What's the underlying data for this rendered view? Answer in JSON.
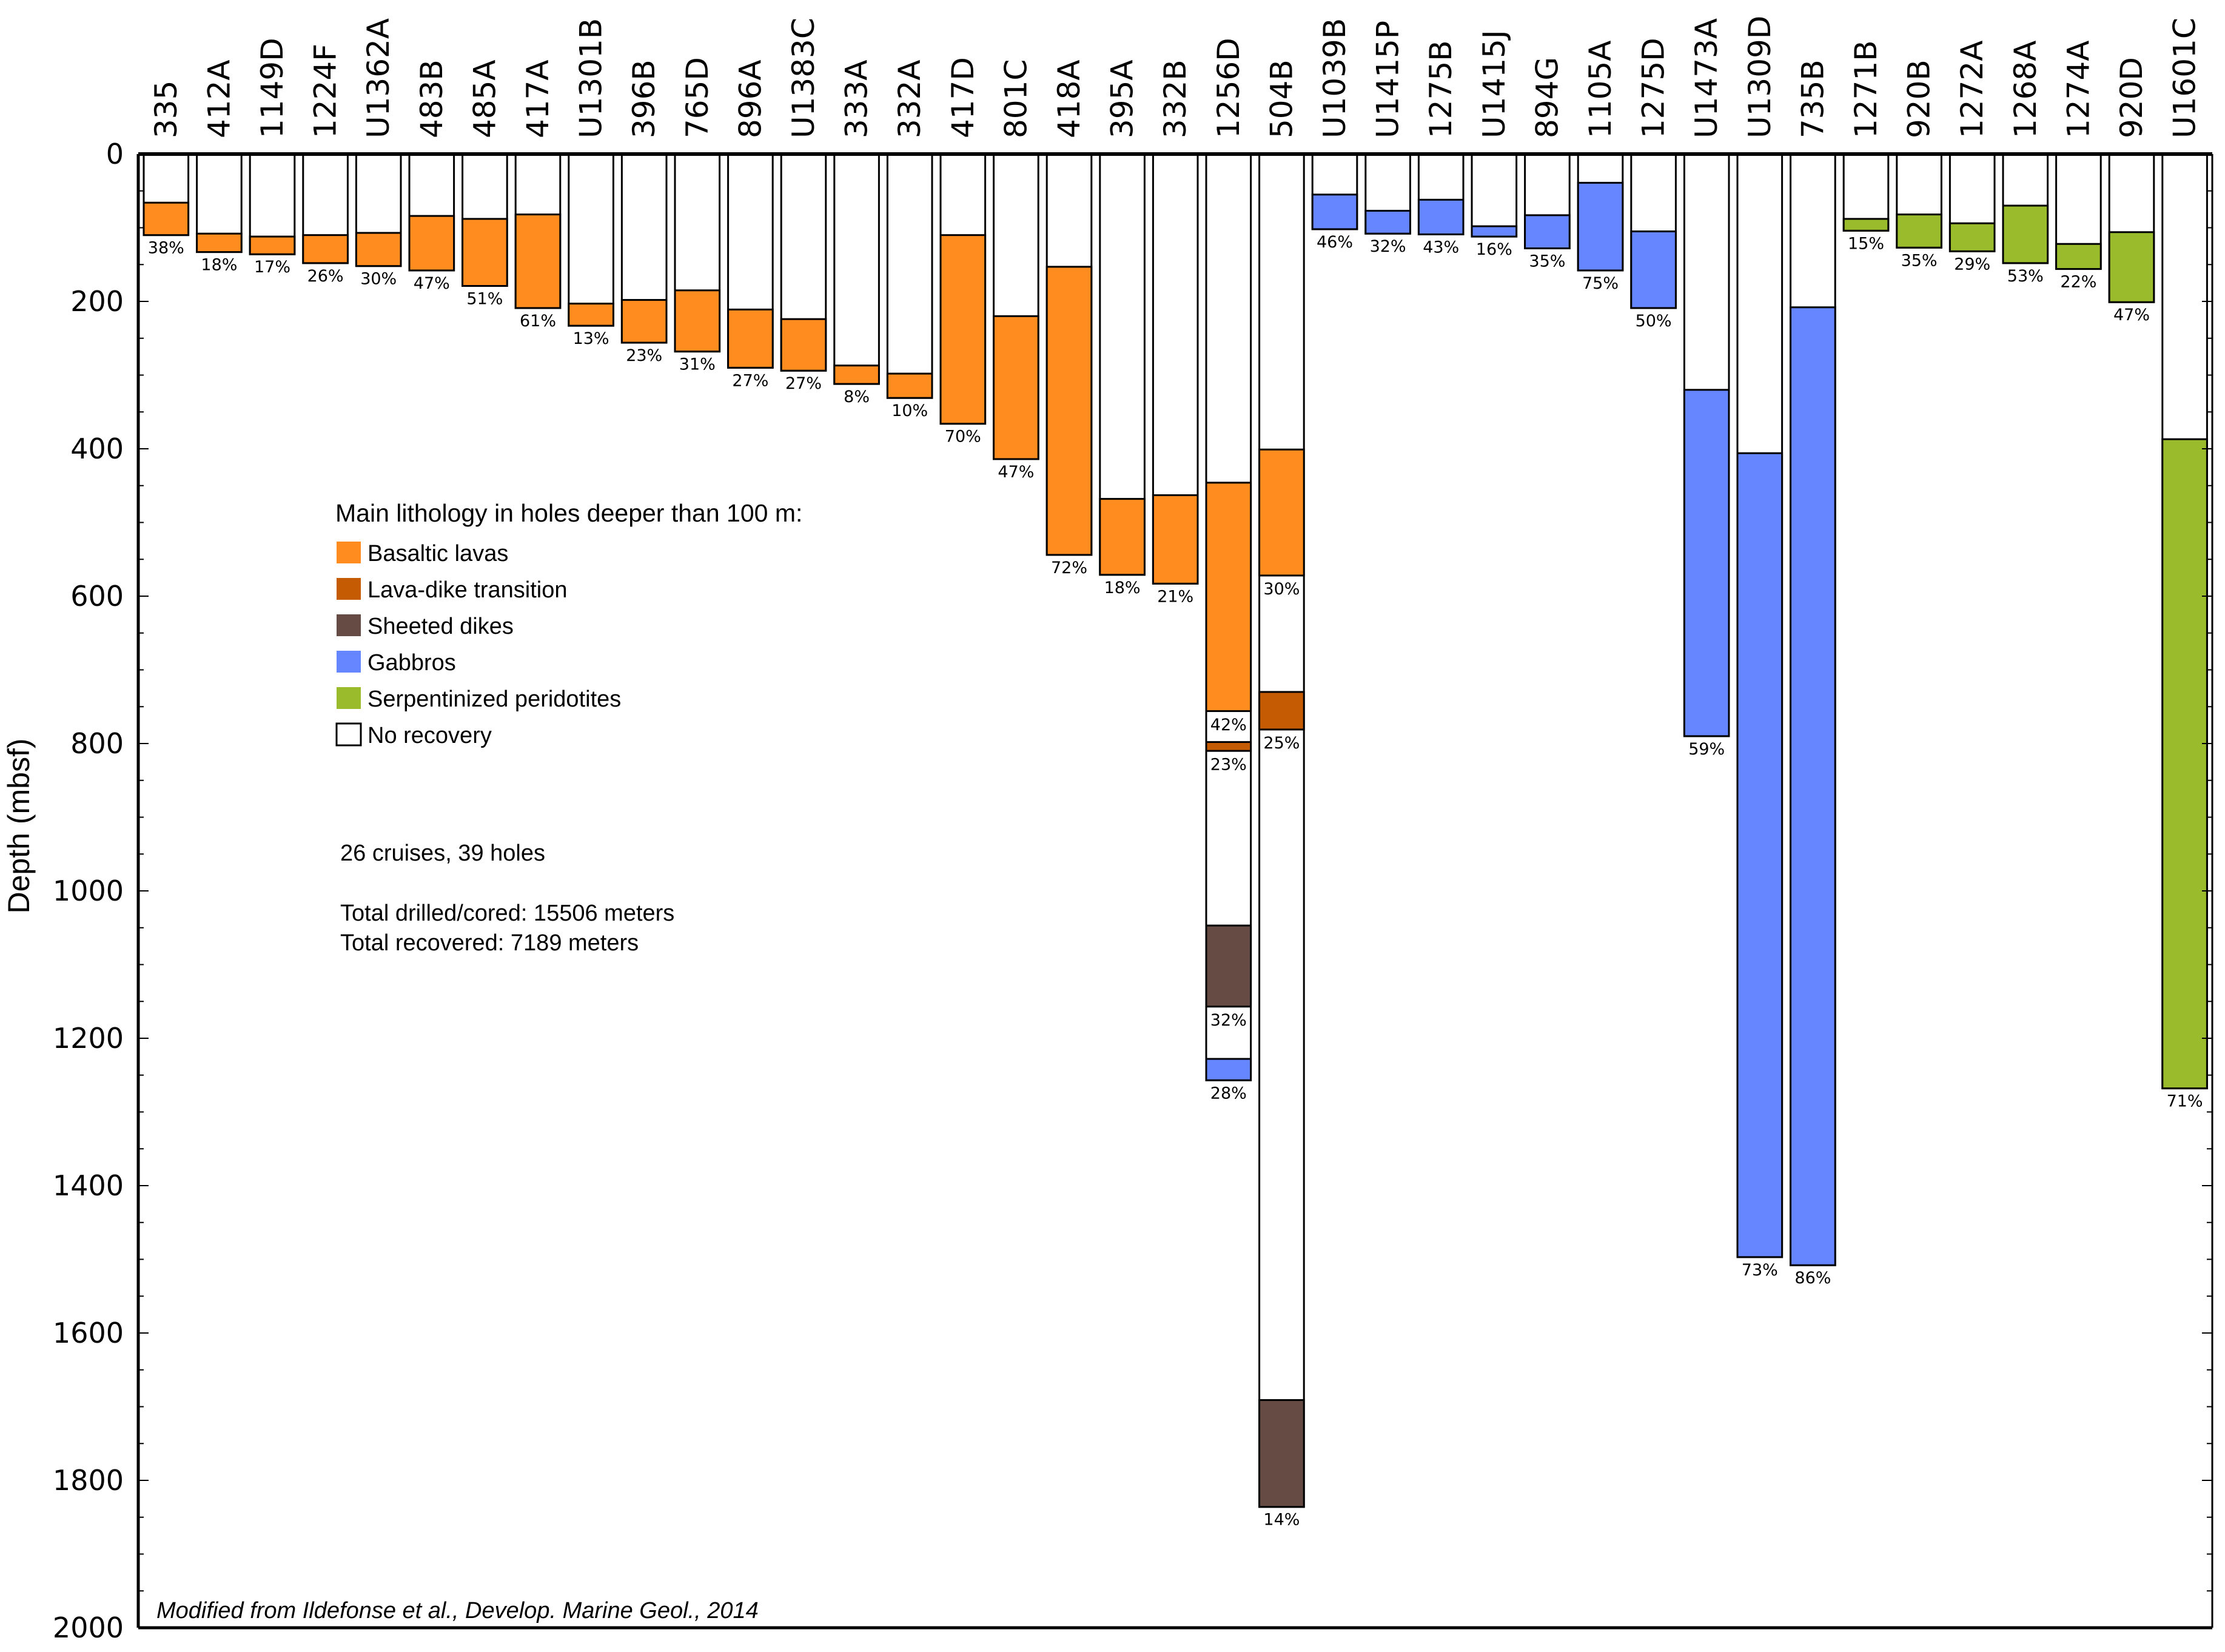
{
  "chart_data": {
    "type": "bar",
    "subtype": "stacked-depth-column",
    "title": "",
    "xlabel": "",
    "ylabel": "Depth (mbsf)",
    "ylim": [
      0,
      2000
    ],
    "y_inverted": true,
    "yticks": [
      0,
      200,
      400,
      600,
      800,
      1000,
      1200,
      1400,
      1600,
      1800,
      2000
    ],
    "y_minor_step": 50,
    "grid": false,
    "legend_position": "upper-left-inside",
    "legend_title": "Main lithology in holes deeper than 100 m:",
    "lithologies": [
      {
        "key": "basalt",
        "label": "Basaltic lavas",
        "color": "#FF8C1E"
      },
      {
        "key": "transition",
        "label": "Lava-dike transition",
        "color": "#C55C04"
      },
      {
        "key": "dikes",
        "label": "Sheeted dikes",
        "color": "#654B44"
      },
      {
        "key": "gabbro",
        "label": "Gabbros",
        "color": "#6586FF"
      },
      {
        "key": "peridotite",
        "label": "Serpentinized peridotites",
        "color": "#9ABB2C"
      },
      {
        "key": "none",
        "label": "No recovery",
        "color": "#FFFFFF"
      }
    ],
    "notes": [
      "26 cruises, 39 holes",
      "Total drilled/cored: 15506 meters",
      "Total recovered: 7189 meters"
    ],
    "credit": "Modified from Ildefonse et al., Develop. Marine Geol., 2014",
    "holes": [
      {
        "name": "335",
        "total": 110,
        "segments": [
          {
            "top": 66,
            "bottom": 110,
            "lith": "basalt"
          }
        ],
        "labels": [
          {
            "text": "38%",
            "depth": 110
          }
        ]
      },
      {
        "name": "412A",
        "total": 133,
        "segments": [
          {
            "top": 108,
            "bottom": 133,
            "lith": "basalt"
          }
        ],
        "labels": [
          {
            "text": "18%",
            "depth": 133
          }
        ]
      },
      {
        "name": "1149D",
        "total": 136,
        "segments": [
          {
            "top": 112,
            "bottom": 136,
            "lith": "basalt"
          }
        ],
        "labels": [
          {
            "text": "17%",
            "depth": 136
          }
        ]
      },
      {
        "name": "1224F",
        "total": 148,
        "segments": [
          {
            "top": 110,
            "bottom": 148,
            "lith": "basalt"
          }
        ],
        "labels": [
          {
            "text": "26%",
            "depth": 148
          }
        ]
      },
      {
        "name": "U1362A",
        "total": 152,
        "segments": [
          {
            "top": 107,
            "bottom": 152,
            "lith": "basalt"
          }
        ],
        "labels": [
          {
            "text": "30%",
            "depth": 152
          }
        ]
      },
      {
        "name": "483B",
        "total": 158,
        "segments": [
          {
            "top": 84,
            "bottom": 158,
            "lith": "basalt"
          }
        ],
        "labels": [
          {
            "text": "47%",
            "depth": 158
          }
        ]
      },
      {
        "name": "485A",
        "total": 179,
        "segments": [
          {
            "top": 88,
            "bottom": 179,
            "lith": "basalt"
          }
        ],
        "labels": [
          {
            "text": "51%",
            "depth": 179
          }
        ]
      },
      {
        "name": "417A",
        "total": 209,
        "segments": [
          {
            "top": 82,
            "bottom": 209,
            "lith": "basalt"
          }
        ],
        "labels": [
          {
            "text": "61%",
            "depth": 209
          }
        ]
      },
      {
        "name": "U1301B",
        "total": 233,
        "segments": [
          {
            "top": 203,
            "bottom": 233,
            "lith": "basalt"
          }
        ],
        "labels": [
          {
            "text": "13%",
            "depth": 233
          }
        ]
      },
      {
        "name": "396B",
        "total": 256,
        "segments": [
          {
            "top": 198,
            "bottom": 256,
            "lith": "basalt"
          }
        ],
        "labels": [
          {
            "text": "23%",
            "depth": 256
          }
        ]
      },
      {
        "name": "765D",
        "total": 268,
        "segments": [
          {
            "top": 185,
            "bottom": 268,
            "lith": "basalt"
          }
        ],
        "labels": [
          {
            "text": "31%",
            "depth": 268
          }
        ]
      },
      {
        "name": "896A",
        "total": 290,
        "segments": [
          {
            "top": 211,
            "bottom": 290,
            "lith": "basalt"
          }
        ],
        "labels": [
          {
            "text": "27%",
            "depth": 290
          }
        ]
      },
      {
        "name": "U1383C",
        "total": 294,
        "segments": [
          {
            "top": 224,
            "bottom": 294,
            "lith": "basalt"
          }
        ],
        "labels": [
          {
            "text": "27%",
            "depth": 294
          }
        ]
      },
      {
        "name": "333A",
        "total": 312,
        "segments": [
          {
            "top": 287,
            "bottom": 312,
            "lith": "basalt"
          }
        ],
        "labels": [
          {
            "text": "8%",
            "depth": 312
          }
        ]
      },
      {
        "name": "332A",
        "total": 331,
        "segments": [
          {
            "top": 298,
            "bottom": 331,
            "lith": "basalt"
          }
        ],
        "labels": [
          {
            "text": "10%",
            "depth": 331
          }
        ]
      },
      {
        "name": "417D",
        "total": 366,
        "segments": [
          {
            "top": 110,
            "bottom": 366,
            "lith": "basalt"
          }
        ],
        "labels": [
          {
            "text": "70%",
            "depth": 366
          }
        ]
      },
      {
        "name": "801C",
        "total": 414,
        "segments": [
          {
            "top": 220,
            "bottom": 414,
            "lith": "basalt"
          }
        ],
        "labels": [
          {
            "text": "47%",
            "depth": 414
          }
        ]
      },
      {
        "name": "418A",
        "total": 544,
        "segments": [
          {
            "top": 153,
            "bottom": 544,
            "lith": "basalt"
          }
        ],
        "labels": [
          {
            "text": "72%",
            "depth": 544
          }
        ]
      },
      {
        "name": "395A",
        "total": 571,
        "segments": [
          {
            "top": 468,
            "bottom": 571,
            "lith": "basalt"
          }
        ],
        "labels": [
          {
            "text": "18%",
            "depth": 571
          }
        ]
      },
      {
        "name": "332B",
        "total": 583,
        "segments": [
          {
            "top": 463,
            "bottom": 583,
            "lith": "basalt"
          }
        ],
        "labels": [
          {
            "text": "21%",
            "depth": 583
          }
        ]
      },
      {
        "name": "1256D",
        "total": 1257,
        "segments": [
          {
            "top": 446,
            "bottom": 756,
            "lith": "basalt"
          },
          {
            "top": 798,
            "bottom": 810,
            "lith": "transition"
          },
          {
            "top": 1047,
            "bottom": 1157,
            "lith": "dikes"
          },
          {
            "top": 1228,
            "bottom": 1257,
            "lith": "gabbro"
          }
        ],
        "labels": [
          {
            "text": "42%",
            "depth": 757
          },
          {
            "text": "23%",
            "depth": 811
          },
          {
            "text": "32%",
            "depth": 1158
          },
          {
            "text": "28%",
            "depth": 1257
          }
        ]
      },
      {
        "name": "504B",
        "total": 1836,
        "segments": [
          {
            "top": 401,
            "bottom": 572,
            "lith": "basalt"
          },
          {
            "top": 730,
            "bottom": 781,
            "lith": "transition"
          },
          {
            "top": 1691,
            "bottom": 1836,
            "lith": "dikes"
          }
        ],
        "labels": [
          {
            "text": "30%",
            "depth": 573
          },
          {
            "text": "25%",
            "depth": 782
          },
          {
            "text": "14%",
            "depth": 1836
          }
        ]
      },
      {
        "name": "U1039B",
        "total": 102,
        "segments": [
          {
            "top": 55,
            "bottom": 102,
            "lith": "gabbro"
          }
        ],
        "labels": [
          {
            "text": "46%",
            "depth": 102
          }
        ]
      },
      {
        "name": "U1415P",
        "total": 108,
        "segments": [
          {
            "top": 77,
            "bottom": 108,
            "lith": "gabbro"
          }
        ],
        "labels": [
          {
            "text": "32%",
            "depth": 108
          }
        ]
      },
      {
        "name": "1275B",
        "total": 109,
        "segments": [
          {
            "top": 62,
            "bottom": 109,
            "lith": "gabbro"
          }
        ],
        "labels": [
          {
            "text": "43%",
            "depth": 109
          }
        ]
      },
      {
        "name": "U1415J",
        "total": 112,
        "segments": [
          {
            "top": 98,
            "bottom": 112,
            "lith": "gabbro"
          }
        ],
        "labels": [
          {
            "text": "16%",
            "depth": 112
          }
        ]
      },
      {
        "name": "894G",
        "total": 128,
        "segments": [
          {
            "top": 83,
            "bottom": 128,
            "lith": "gabbro"
          }
        ],
        "labels": [
          {
            "text": "35%",
            "depth": 128
          }
        ]
      },
      {
        "name": "1105A",
        "total": 158,
        "segments": [
          {
            "top": 39,
            "bottom": 158,
            "lith": "gabbro"
          }
        ],
        "labels": [
          {
            "text": "75%",
            "depth": 158
          }
        ]
      },
      {
        "name": "1275D",
        "total": 209,
        "segments": [
          {
            "top": 105,
            "bottom": 209,
            "lith": "gabbro"
          }
        ],
        "labels": [
          {
            "text": "50%",
            "depth": 209
          }
        ]
      },
      {
        "name": "U1473A",
        "total": 790,
        "segments": [
          {
            "top": 320,
            "bottom": 790,
            "lith": "gabbro"
          }
        ],
        "labels": [
          {
            "text": "59%",
            "depth": 790
          }
        ]
      },
      {
        "name": "U1309D",
        "total": 1497,
        "segments": [
          {
            "top": 406,
            "bottom": 1497,
            "lith": "gabbro"
          }
        ],
        "labels": [
          {
            "text": "73%",
            "depth": 1497
          }
        ]
      },
      {
        "name": "735B",
        "total": 1508,
        "segments": [
          {
            "top": 208,
            "bottom": 1508,
            "lith": "gabbro"
          }
        ],
        "labels": [
          {
            "text": "86%",
            "depth": 1508
          }
        ]
      },
      {
        "name": "1271B",
        "total": 104,
        "segments": [
          {
            "top": 88,
            "bottom": 104,
            "lith": "peridotite"
          }
        ],
        "labels": [
          {
            "text": "15%",
            "depth": 104
          }
        ]
      },
      {
        "name": "920B",
        "total": 127,
        "segments": [
          {
            "top": 82,
            "bottom": 127,
            "lith": "peridotite"
          }
        ],
        "labels": [
          {
            "text": "35%",
            "depth": 127
          }
        ]
      },
      {
        "name": "1272A",
        "total": 132,
        "segments": [
          {
            "top": 94,
            "bottom": 132,
            "lith": "peridotite"
          }
        ],
        "labels": [
          {
            "text": "29%",
            "depth": 132
          }
        ]
      },
      {
        "name": "1268A",
        "total": 148,
        "segments": [
          {
            "top": 70,
            "bottom": 148,
            "lith": "peridotite"
          }
        ],
        "labels": [
          {
            "text": "53%",
            "depth": 148
          }
        ]
      },
      {
        "name": "1274A",
        "total": 156,
        "segments": [
          {
            "top": 122,
            "bottom": 156,
            "lith": "peridotite"
          }
        ],
        "labels": [
          {
            "text": "22%",
            "depth": 156
          }
        ]
      },
      {
        "name": "920D",
        "total": 201,
        "segments": [
          {
            "top": 106,
            "bottom": 201,
            "lith": "peridotite"
          }
        ],
        "labels": [
          {
            "text": "47%",
            "depth": 201
          }
        ]
      },
      {
        "name": "U1601C",
        "total": 1268,
        "segments": [
          {
            "top": 387,
            "bottom": 1268,
            "lith": "peridotite"
          }
        ],
        "labels": [
          {
            "text": "71%",
            "depth": 1268
          }
        ]
      }
    ]
  }
}
